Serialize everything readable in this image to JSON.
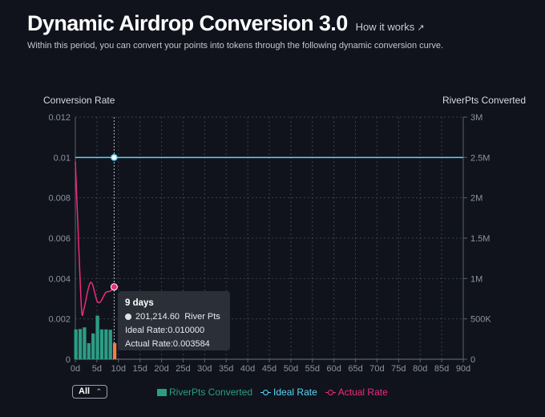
{
  "header": {
    "title": "Dynamic Airdrop Conversion 3.0",
    "how_it_works": "How it works",
    "how_it_works_icon": "arrow-up-right-icon",
    "subtitle": "Within this period, you can convert your points into tokens through the following dynamic conversion curve."
  },
  "colors": {
    "background": "#10131c",
    "bars": "#2c9d85",
    "bar_highlight": "#ee7d52",
    "ideal_rate": "#5fd3f3",
    "actual_rate": "#ef2a7f",
    "grid": "#3a3f4a"
  },
  "chart_data": {
    "type": "bar+line",
    "left_axis_title": "Conversion Rate",
    "right_axis_title": "RiverPts Converted",
    "x_label": "",
    "x_ticks": [
      "0d",
      "5d",
      "10d",
      "15d",
      "20d",
      "25d",
      "30d",
      "35d",
      "40d",
      "45d",
      "50d",
      "55d",
      "60d",
      "65d",
      "70d",
      "75d",
      "80d",
      "85d",
      "90d"
    ],
    "x_range": [
      0,
      90
    ],
    "left_ticks": [
      "0",
      "0.002",
      "0.004",
      "0.006",
      "0.008",
      "0.01",
      "0.012"
    ],
    "left_range": [
      0,
      0.012
    ],
    "right_ticks": [
      "0",
      "500K",
      "1M",
      "1.5M",
      "2M",
      "2.5M",
      "3M"
    ],
    "right_range": [
      0,
      3000000
    ],
    "grid": true,
    "series": [
      {
        "name": "RiverPts Converted",
        "kind": "bar",
        "axis": "right",
        "x": [
          0,
          1,
          2,
          3,
          4,
          5,
          6,
          7,
          8,
          9
        ],
        "values": [
          370000,
          375000,
          395000,
          200000,
          320000,
          540000,
          370000,
          370000,
          365000,
          201214.6
        ]
      },
      {
        "name": "Ideal Rate",
        "kind": "line",
        "axis": "left",
        "x": [
          0,
          90
        ],
        "values": [
          0.01,
          0.01
        ]
      },
      {
        "name": "Actual Rate",
        "kind": "line",
        "axis": "left",
        "x": [
          0,
          1,
          1.5,
          2,
          2.5,
          3,
          3.5,
          4,
          4.5,
          5,
          5.5,
          6,
          6.5,
          7,
          7.5,
          8,
          8.5,
          9
        ],
        "values": [
          0.0098,
          0.0045,
          0.0023,
          0.0025,
          0.003,
          0.0035,
          0.0038,
          0.0037,
          0.0033,
          0.0029,
          0.0028,
          0.0029,
          0.0031,
          0.0033,
          0.00335,
          0.00337,
          0.00345,
          0.003584
        ]
      }
    ],
    "highlight_day": 9
  },
  "tooltip": {
    "title": "9 days",
    "points_value": "201,214.60",
    "points_unit": "River Pts",
    "ideal": "Ideal Rate:0.010000",
    "actual": "Actual Rate:0.003584"
  },
  "footer": {
    "range_selected": "All",
    "legend": [
      "RiverPts Converted",
      "Ideal Rate",
      "Actual Rate"
    ]
  }
}
